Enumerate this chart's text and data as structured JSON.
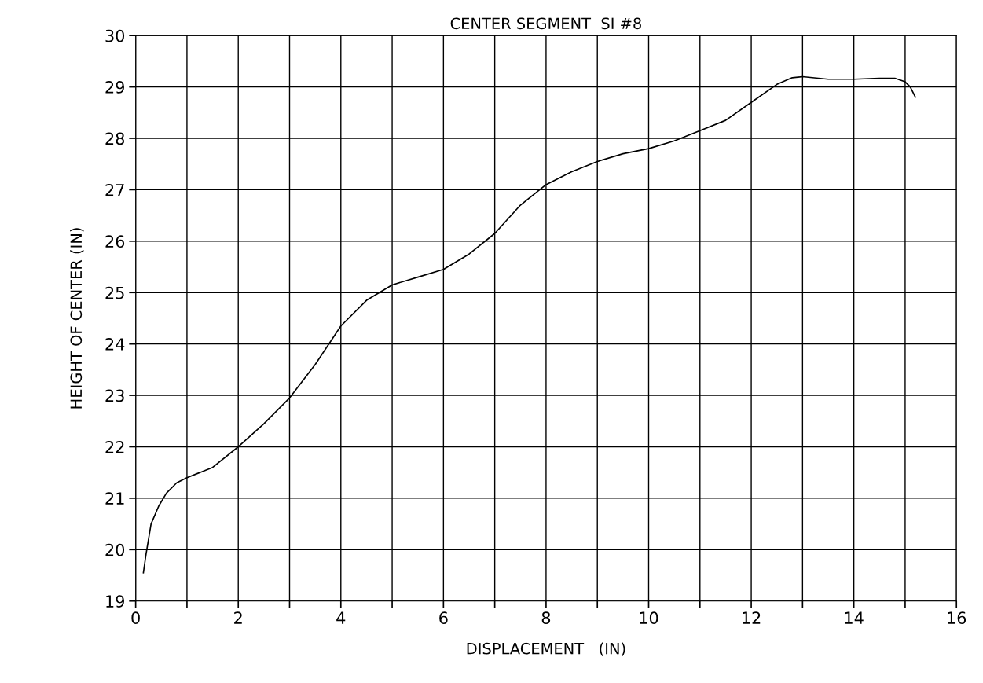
{
  "chart_data": {
    "type": "line",
    "title": "CENTER SEGMENT  SI #8",
    "xlabel": "DISPLACEMENT   (IN)",
    "ylabel": "HEIGHT OF CENTER (IN)",
    "xlim": [
      0,
      16
    ],
    "ylim": [
      19,
      30
    ],
    "xticks": [
      0,
      {
        "value": 1,
        "label": null
      },
      2,
      {
        "value": 3,
        "label": null
      },
      4,
      {
        "value": 5,
        "label": null
      },
      6,
      {
        "value": 7,
        "label": null
      },
      8,
      {
        "value": 9,
        "label": null
      },
      10,
      {
        "value": 11,
        "label": null
      },
      12,
      {
        "value": 13,
        "label": null
      },
      14,
      {
        "value": 15,
        "label": null
      },
      16
    ],
    "yticks": [
      19,
      20,
      21,
      22,
      23,
      24,
      25,
      26,
      27,
      28,
      29,
      30
    ],
    "grid": true,
    "series": [
      {
        "color": "#000000",
        "x": [
          0.15,
          0.2,
          0.3,
          0.45,
          0.6,
          0.8,
          1.0,
          1.5,
          2.0,
          2.5,
          3.0,
          3.5,
          4.0,
          4.5,
          5.0,
          5.5,
          6.0,
          6.5,
          7.0,
          7.5,
          8.0,
          8.5,
          9.0,
          9.5,
          10.0,
          10.5,
          11.0,
          11.5,
          12.0,
          12.5,
          12.8,
          13.0,
          13.5,
          14.0,
          14.5,
          14.8,
          15.0,
          15.1,
          15.2
        ],
        "values": [
          19.55,
          19.9,
          20.5,
          20.85,
          21.1,
          21.3,
          21.4,
          21.6,
          22.0,
          22.45,
          22.95,
          23.6,
          24.35,
          24.85,
          25.15,
          25.3,
          25.45,
          25.75,
          26.15,
          26.7,
          27.1,
          27.35,
          27.55,
          27.7,
          27.8,
          27.95,
          28.15,
          28.35,
          28.7,
          29.05,
          29.18,
          29.2,
          29.15,
          29.15,
          29.17,
          29.17,
          29.1,
          29.0,
          28.8
        ]
      }
    ]
  }
}
